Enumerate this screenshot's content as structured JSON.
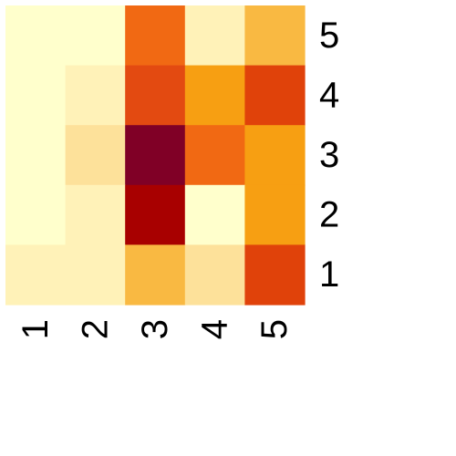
{
  "chart_data": {
    "type": "heatmap",
    "x_labels": [
      "1",
      "2",
      "3",
      "4",
      "5"
    ],
    "y_labels": [
      "1",
      "2",
      "3",
      "4",
      "5"
    ],
    "y_order": "bottom-to-top",
    "x_tick_rotation": "vertical",
    "palette": "YlOrRd",
    "grid": false,
    "rows": [
      {
        "y": "5",
        "colors": [
          "#FFFFCC",
          "#FFFFCC",
          "#F16913",
          "#FFF2B8",
          "#F9B942"
        ]
      },
      {
        "y": "4",
        "colors": [
          "#FFFFCC",
          "#FFF2B8",
          "#E34A11",
          "#F79F12",
          "#E0420A"
        ]
      },
      {
        "y": "3",
        "colors": [
          "#FFFFCC",
          "#FDE19A",
          "#800026",
          "#F16913",
          "#F79F12"
        ]
      },
      {
        "y": "2",
        "colors": [
          "#FFFFCC",
          "#FFF2B8",
          "#A80000",
          "#FFFFCC",
          "#F79F12"
        ]
      },
      {
        "y": "1",
        "colors": [
          "#FFF2B8",
          "#FFF2B8",
          "#F9B942",
          "#FDE19A",
          "#E0420A"
        ]
      }
    ]
  }
}
